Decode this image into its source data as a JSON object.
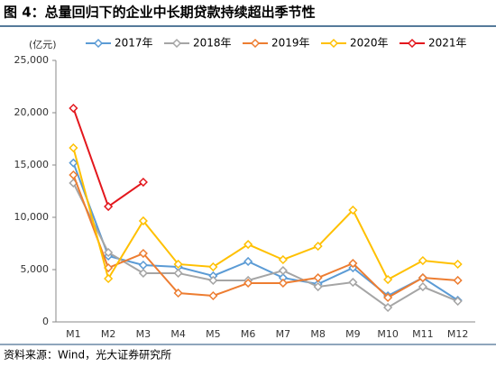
{
  "chart_data": {
    "type": "line",
    "title": "图 4：总量回归下的企业中长期贷款持续超出季节性",
    "y_label": "(亿元)",
    "source": "资料来源：Wind，光大证券研究所",
    "categories": [
      "M1",
      "M2",
      "M3",
      "M4",
      "M5",
      "M6",
      "M7",
      "M8",
      "M9",
      "M10",
      "M11",
      "M12"
    ],
    "ylim": [
      0,
      25000
    ],
    "yticks": [
      0,
      {
        "value": 5000,
        "label": "5,000"
      },
      {
        "value": 10000,
        "label": "10,000"
      },
      {
        "value": 15000,
        "label": "15,000"
      },
      {
        "value": 20000,
        "label": "20,000"
      },
      {
        "value": 25000,
        "label": "25,000"
      }
    ],
    "legend": "top",
    "series": [
      {
        "name": "2017年",
        "color": "#5b9bd5",
        "values": [
          15200,
          6300,
          5430,
          5260,
          4400,
          5780,
          4220,
          3620,
          5170,
          2500,
          4220,
          2070
        ]
      },
      {
        "name": "2018年",
        "color": "#a5a5a5",
        "values": [
          13280,
          6640,
          4660,
          4660,
          3970,
          3970,
          4910,
          3360,
          3790,
          1380,
          3360,
          1980
        ]
      },
      {
        "name": "2019年",
        "color": "#ed7d31",
        "values": [
          14050,
          5170,
          6550,
          2760,
          2500,
          3710,
          3710,
          4220,
          5600,
          2330,
          4220,
          3970
        ]
      },
      {
        "name": "2020年",
        "color": "#ffc000",
        "values": [
          16640,
          4140,
          9660,
          5520,
          5260,
          7410,
          5950,
          7240,
          10690,
          4050,
          5860,
          5520
        ]
      },
      {
        "name": "2021年",
        "color": "#e3171d",
        "values": [
          20430,
          11030,
          13360,
          null,
          null,
          null,
          null,
          null,
          null,
          null,
          null,
          null
        ]
      }
    ]
  }
}
